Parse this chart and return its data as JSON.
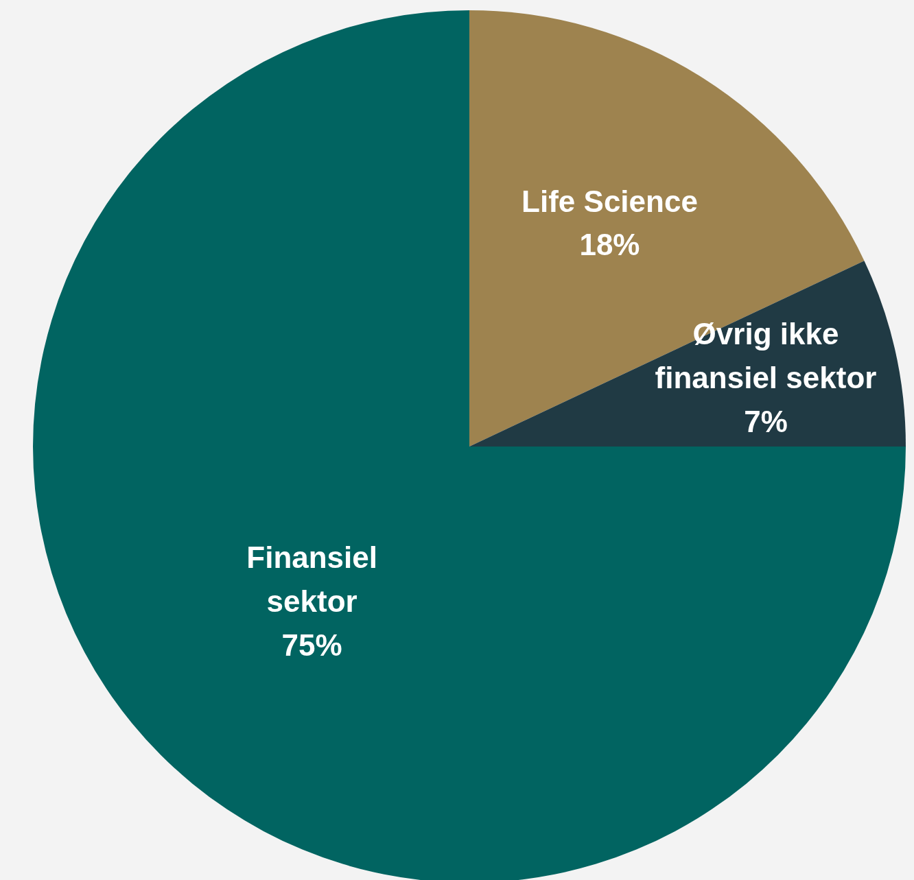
{
  "chart_data": {
    "type": "pie",
    "categories": [
      "Life Science",
      "Øvrig ikke finansiel sektor",
      "Finansiel sektor"
    ],
    "values": [
      18,
      7,
      75
    ],
    "value_labels": [
      "18%",
      "7%",
      "75%"
    ],
    "colors": [
      "#9e834f",
      "#203a44",
      "#016461"
    ]
  }
}
